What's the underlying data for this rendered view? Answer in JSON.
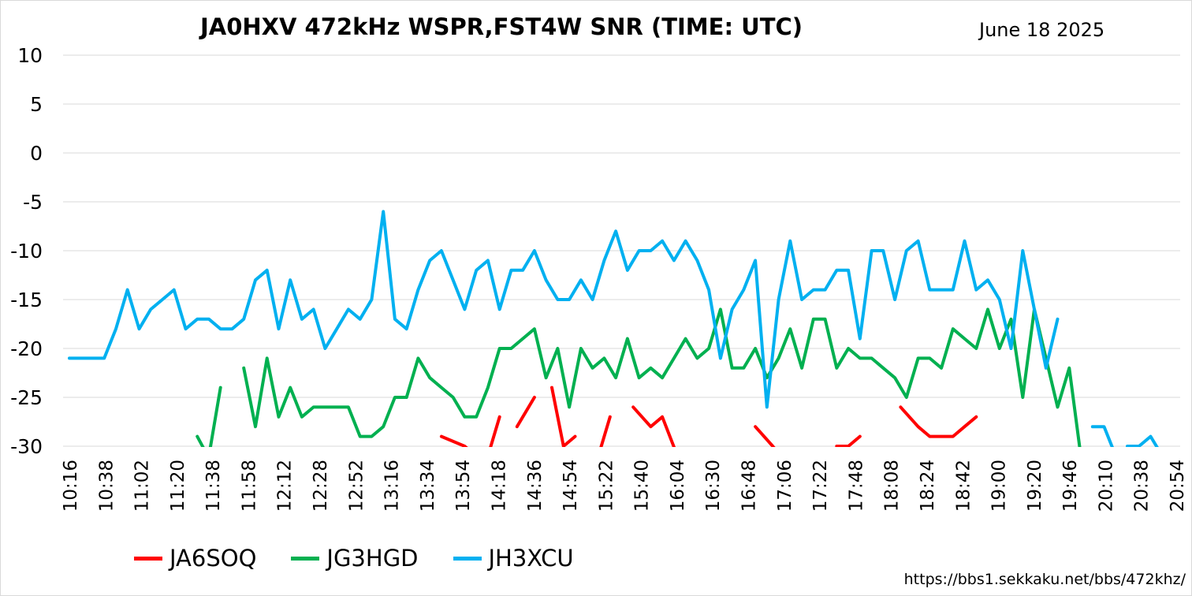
{
  "chart_data": {
    "type": "line",
    "title": "JA0HXV 472kHz WSPR,FST4W SNR (TIME: UTC)",
    "date": "June 18 2025",
    "url": "https://bbs1.sekkaku.net/bbs/472khz/",
    "ylim": [
      -30,
      10
    ],
    "yticks": [
      10,
      5,
      0,
      -5,
      -10,
      -15,
      -20,
      -25,
      -30
    ],
    "xlim": [
      0,
      95
    ],
    "grid": true,
    "legend_position": "bottom",
    "x_tick_labels": [
      "10:16",
      "10:38",
      "11:02",
      "11:20",
      "11:38",
      "11:58",
      "12:12",
      "12:28",
      "12:52",
      "13:16",
      "13:34",
      "13:54",
      "14:18",
      "14:36",
      "14:54",
      "15:22",
      "15:40",
      "16:04",
      "16:30",
      "16:48",
      "17:06",
      "17:22",
      "17:48",
      "18:08",
      "18:24",
      "18:42",
      "19:00",
      "19:20",
      "19:46",
      "20:10",
      "20:38",
      "20:54"
    ],
    "series": [
      {
        "name": "JA6SOQ",
        "color": "#ff0000",
        "points": [
          [
            32,
            -29
          ],
          [
            34,
            -30
          ],
          [
            35,
            -31
          ],
          [
            36,
            -31
          ],
          [
            37,
            -27
          ],
          [
            null,
            null
          ],
          [
            38.5,
            -28
          ],
          [
            40,
            -25
          ],
          [
            null,
            null
          ],
          [
            41.5,
            -24
          ],
          [
            42.5,
            -30
          ],
          [
            43.5,
            -29
          ],
          [
            null,
            null
          ],
          [
            45.5,
            -31
          ],
          [
            46.5,
            -27
          ],
          [
            null,
            null
          ],
          [
            48.5,
            -26
          ],
          [
            50,
            -28
          ],
          [
            51,
            -27
          ],
          [
            52.3,
            -31
          ],
          [
            null,
            null
          ],
          [
            59,
            -28
          ],
          [
            60.5,
            -30
          ],
          [
            61.2,
            -31
          ],
          [
            null,
            null
          ],
          [
            66,
            -30
          ],
          [
            67,
            -30
          ],
          [
            68,
            -29
          ],
          [
            null,
            null
          ],
          [
            71.5,
            -26
          ],
          [
            73,
            -28
          ],
          [
            74,
            -29
          ],
          [
            75,
            -29
          ],
          [
            76,
            -29
          ],
          [
            77,
            -28
          ],
          [
            78,
            -27
          ]
        ]
      },
      {
        "name": "JG3HGD",
        "color": "#00b050",
        "points": [
          [
            11,
            -29
          ],
          [
            11.9,
            -31
          ],
          [
            null,
            null
          ],
          [
            12,
            -31
          ],
          [
            13,
            -24
          ],
          [
            null,
            null
          ],
          [
            15,
            -22
          ],
          [
            16,
            -28
          ],
          [
            17,
            -21
          ],
          [
            18,
            -27
          ],
          [
            19,
            -24
          ],
          [
            20,
            -27
          ],
          [
            21,
            -26
          ],
          [
            22,
            -26
          ],
          [
            23,
            -26
          ],
          [
            24,
            -26
          ],
          [
            25,
            -29
          ],
          [
            26,
            -29
          ],
          [
            27,
            -28
          ],
          [
            28,
            -25
          ],
          [
            29,
            -25
          ],
          [
            30,
            -21
          ],
          [
            31,
            -23
          ],
          [
            32,
            -24
          ],
          [
            33,
            -25
          ],
          [
            34,
            -27
          ],
          [
            35,
            -27
          ],
          [
            36,
            -24
          ],
          [
            37,
            -20
          ],
          [
            38,
            -20
          ],
          [
            39,
            -19
          ],
          [
            40,
            -18
          ],
          [
            41,
            -23
          ],
          [
            42,
            -20
          ],
          [
            43,
            -26
          ],
          [
            44,
            -20
          ],
          [
            45,
            -22
          ],
          [
            46,
            -21
          ],
          [
            47,
            -23
          ],
          [
            48,
            -19
          ],
          [
            49,
            -23
          ],
          [
            50,
            -22
          ],
          [
            51,
            -23
          ],
          [
            52,
            -21
          ],
          [
            53,
            -19
          ],
          [
            54,
            -21
          ],
          [
            55,
            -20
          ],
          [
            56,
            -16
          ],
          [
            57,
            -22
          ],
          [
            58,
            -22
          ],
          [
            59,
            -20
          ],
          [
            60,
            -23
          ],
          [
            61,
            -21
          ],
          [
            62,
            -18
          ],
          [
            63,
            -22
          ],
          [
            64,
            -17
          ],
          [
            65,
            -17
          ],
          [
            66,
            -22
          ],
          [
            67,
            -20
          ],
          [
            68,
            -21
          ],
          [
            69,
            -21
          ],
          [
            70,
            -22
          ],
          [
            71,
            -23
          ],
          [
            72,
            -25
          ],
          [
            73,
            -21
          ],
          [
            74,
            -21
          ],
          [
            75,
            -22
          ],
          [
            76,
            -18
          ],
          [
            77,
            -19
          ],
          [
            78,
            -20
          ],
          [
            79,
            -16
          ],
          [
            80,
            -20
          ],
          [
            81,
            -17
          ],
          [
            82,
            -25
          ],
          [
            83,
            -16
          ],
          [
            84,
            -21
          ],
          [
            85,
            -26
          ],
          [
            86,
            -22
          ],
          [
            87,
            -31
          ]
        ]
      },
      {
        "name": "JH3XCU",
        "color": "#00b0f0",
        "points": [
          [
            0,
            -21
          ],
          [
            1,
            -21
          ],
          [
            2,
            -21
          ],
          [
            3,
            -21
          ],
          [
            4,
            -18
          ],
          [
            5,
            -14
          ],
          [
            6,
            -18
          ],
          [
            7,
            -16
          ],
          [
            8,
            -15
          ],
          [
            9,
            -14
          ],
          [
            10,
            -18
          ],
          [
            11,
            -17
          ],
          [
            12,
            -17
          ],
          [
            13,
            -18
          ],
          [
            14,
            -18
          ],
          [
            15,
            -17
          ],
          [
            16,
            -13
          ],
          [
            17,
            -12
          ],
          [
            18,
            -18
          ],
          [
            19,
            -13
          ],
          [
            20,
            -17
          ],
          [
            21,
            -16
          ],
          [
            22,
            -20
          ],
          [
            23,
            -18
          ],
          [
            24,
            -16
          ],
          [
            25,
            -17
          ],
          [
            26,
            -15
          ],
          [
            27,
            -6
          ],
          [
            28,
            -17
          ],
          [
            29,
            -18
          ],
          [
            30,
            -14
          ],
          [
            31,
            -11
          ],
          [
            32,
            -10
          ],
          [
            33,
            -13
          ],
          [
            34,
            -16
          ],
          [
            35,
            -12
          ],
          [
            36,
            -11
          ],
          [
            37,
            -16
          ],
          [
            38,
            -12
          ],
          [
            39,
            -12
          ],
          [
            40,
            -10
          ],
          [
            41,
            -13
          ],
          [
            42,
            -15
          ],
          [
            43,
            -15
          ],
          [
            44,
            -13
          ],
          [
            45,
            -15
          ],
          [
            46,
            -11
          ],
          [
            47,
            -8
          ],
          [
            48,
            -12
          ],
          [
            49,
            -10
          ],
          [
            50,
            -10
          ],
          [
            51,
            -9
          ],
          [
            52,
            -11
          ],
          [
            53,
            -9
          ],
          [
            54,
            -11
          ],
          [
            55,
            -14
          ],
          [
            56,
            -21
          ],
          [
            57,
            -16
          ],
          [
            58,
            -14
          ],
          [
            59,
            -11
          ],
          [
            60,
            -26
          ],
          [
            61,
            -15
          ],
          [
            62,
            -9
          ],
          [
            63,
            -15
          ],
          [
            64,
            -14
          ],
          [
            65,
            -14
          ],
          [
            66,
            -12
          ],
          [
            67,
            -12
          ],
          [
            68,
            -19
          ],
          [
            69,
            -10
          ],
          [
            70,
            -10
          ],
          [
            71,
            -15
          ],
          [
            72,
            -10
          ],
          [
            73,
            -9
          ],
          [
            74,
            -14
          ],
          [
            75,
            -14
          ],
          [
            76,
            -14
          ],
          [
            77,
            -9
          ],
          [
            78,
            -14
          ],
          [
            79,
            -13
          ],
          [
            80,
            -15
          ],
          [
            81,
            -20
          ],
          [
            82,
            -10
          ],
          [
            83,
            -16
          ],
          [
            84,
            -22
          ],
          [
            85,
            -17
          ],
          [
            null,
            null
          ],
          [
            88,
            -28
          ],
          [
            89,
            -28
          ],
          [
            90,
            -31
          ],
          [
            null,
            null
          ],
          [
            91,
            -30
          ],
          [
            92,
            -30
          ],
          [
            93,
            -29
          ],
          [
            94,
            -31
          ]
        ]
      }
    ]
  }
}
